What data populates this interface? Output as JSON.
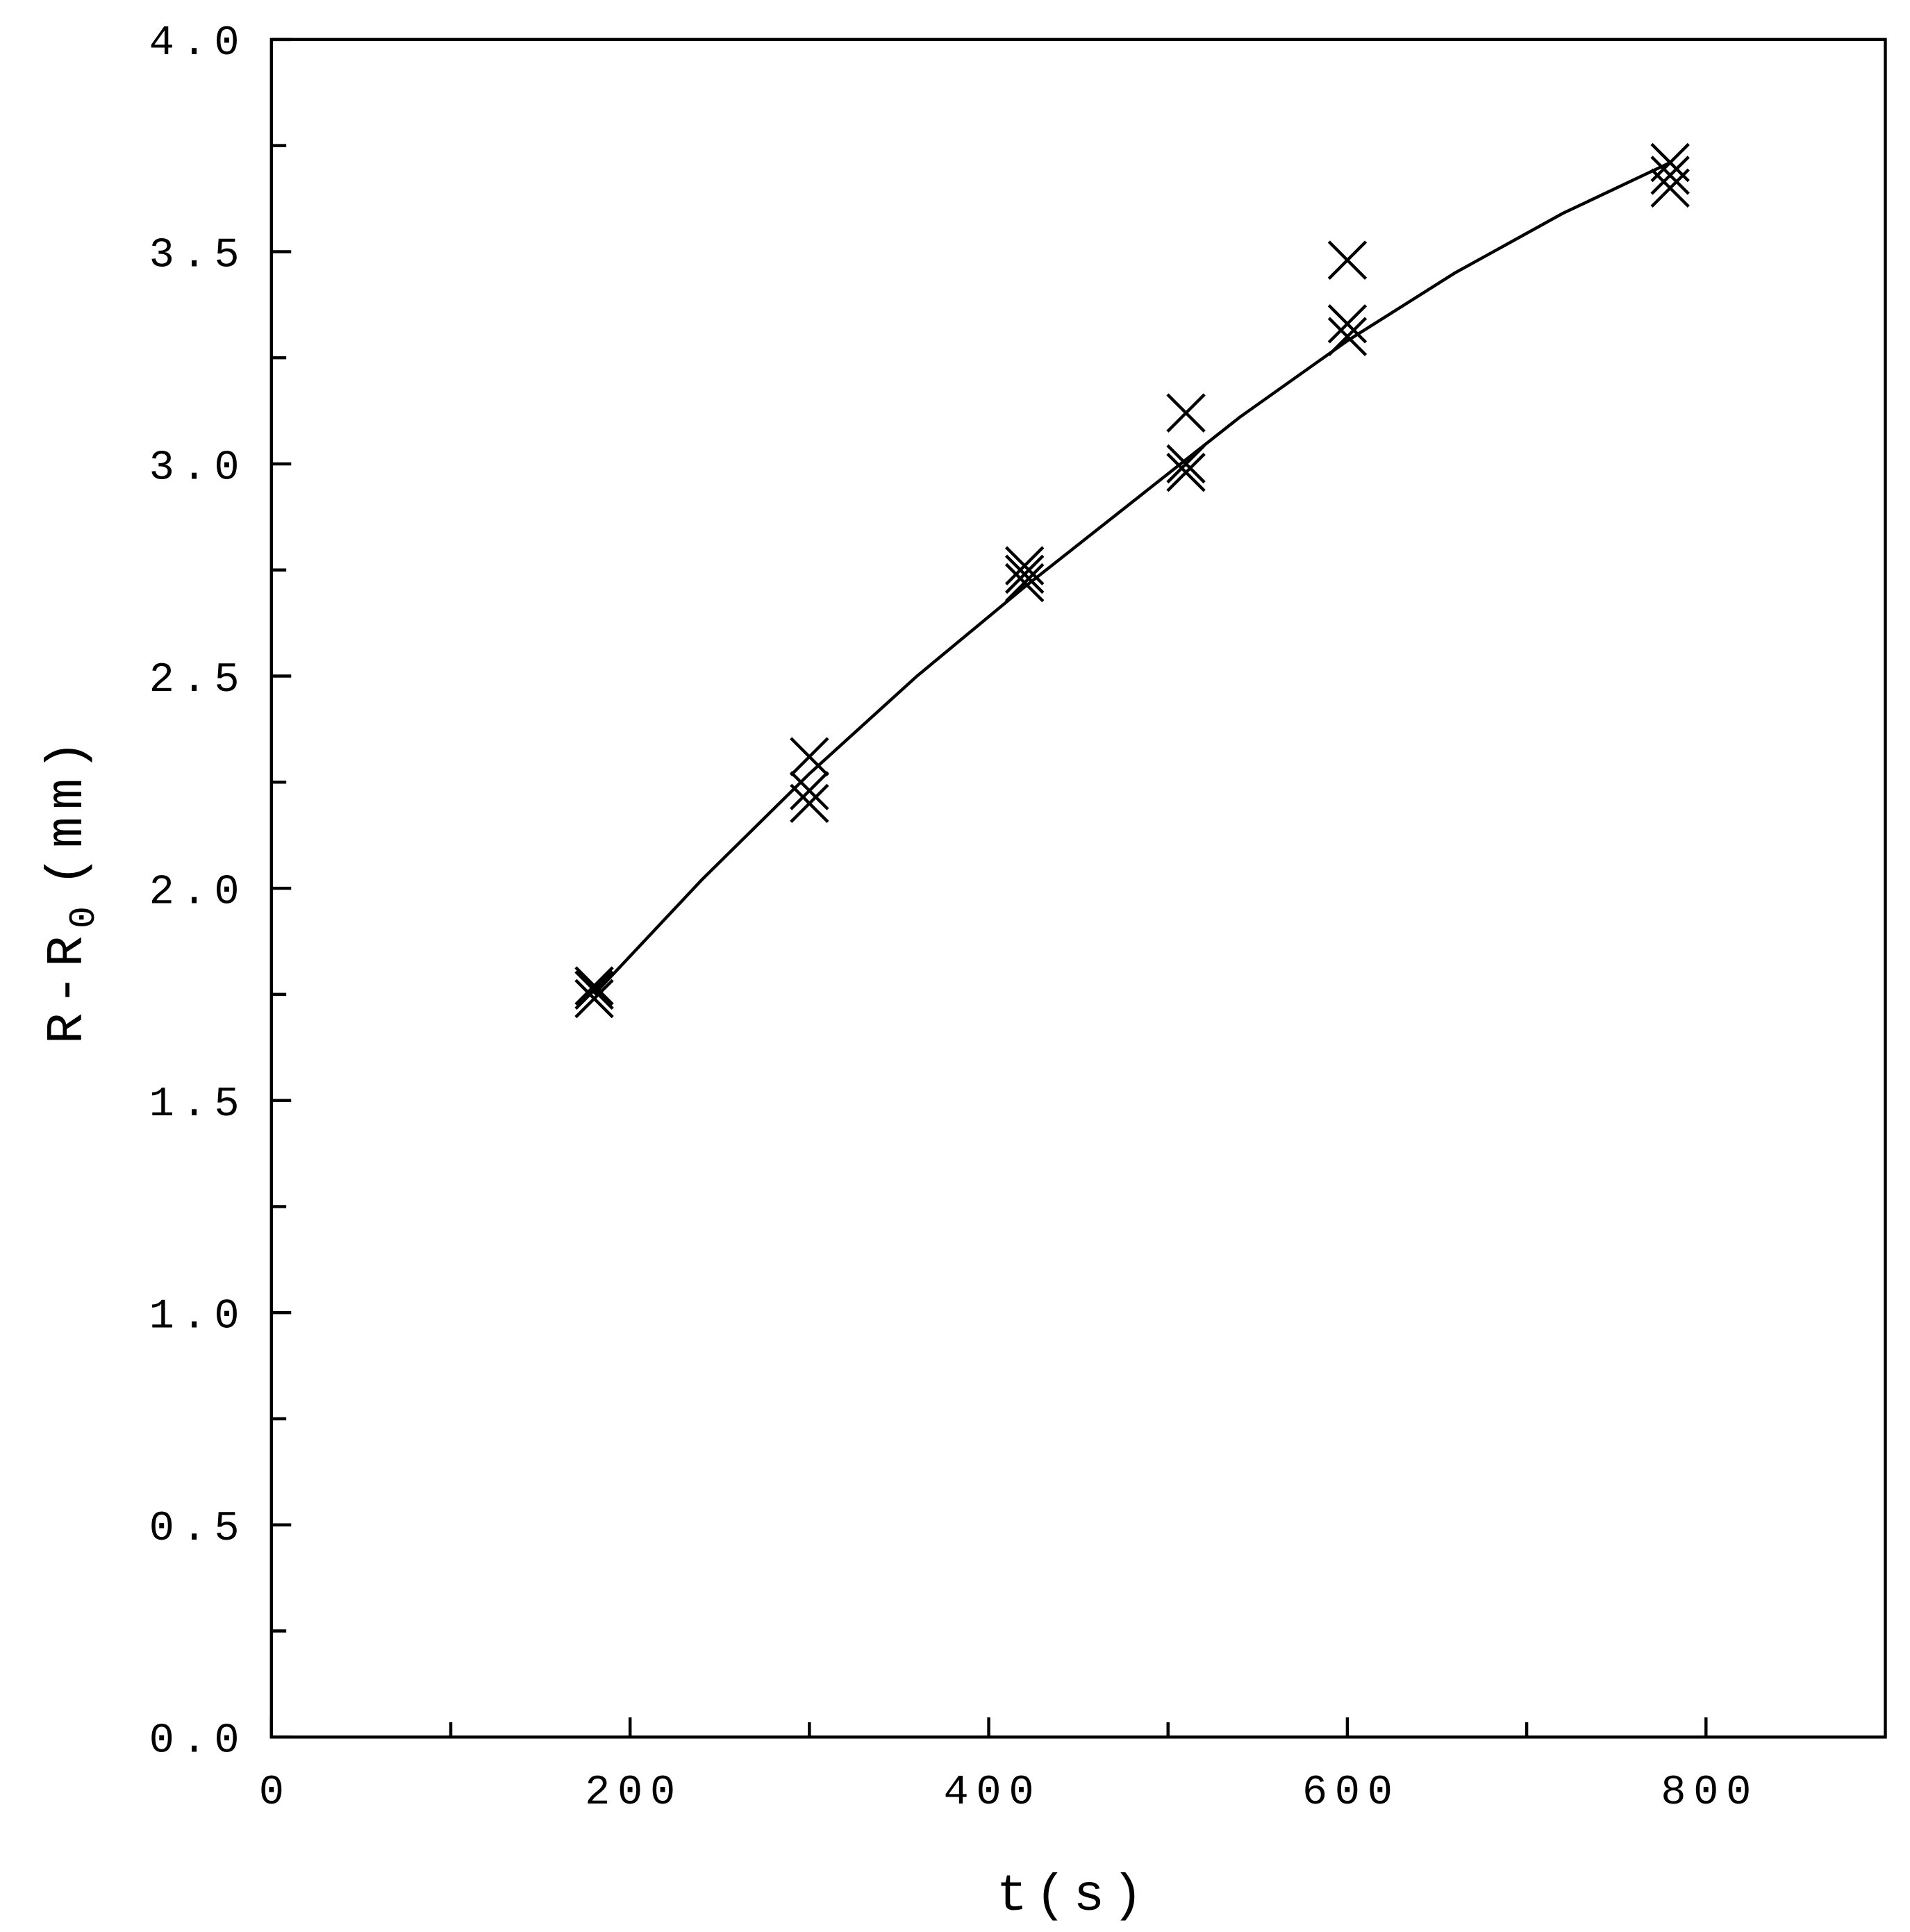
{
  "chart_data": {
    "type": "scatter",
    "xlabel": "t(s)",
    "ylabel_main": "R-R",
    "ylabel_sub": "0",
    "ylabel_unit": "(mm)",
    "xlim": [
      0,
      900
    ],
    "ylim": [
      0,
      4.0
    ],
    "xticks": [
      0,
      200,
      400,
      600,
      800
    ],
    "minor_xticks": [
      100,
      300,
      500,
      700
    ],
    "yticks": [
      {
        "value": 0,
        "label": "0.0"
      },
      0.5,
      {
        "value": 1,
        "label": "1.0"
      },
      1.5,
      {
        "value": 2,
        "label": "2.0"
      },
      2.5,
      {
        "value": 3,
        "label": "3.0"
      },
      3.5,
      {
        "value": 4,
        "label": "4.0"
      }
    ],
    "minor_yticks": [
      0.25,
      0.75,
      1.25,
      1.75,
      2.25,
      2.75,
      3.25,
      3.75
    ],
    "color": "#000000",
    "series": [
      {
        "x": [
          180,
          300,
          420,
          510,
          600,
          780
        ],
        "values": [
          1.77,
          2.31,
          2.76,
          3.12,
          3.48,
          3.71
        ]
      },
      {
        "x": [
          180,
          300,
          420,
          510,
          600,
          780
        ],
        "values": [
          1.76,
          2.23,
          2.74,
          3.0,
          3.33,
          3.68
        ]
      },
      {
        "x": [
          180,
          300,
          420,
          510,
          600,
          780
        ],
        "values": [
          1.74,
          2.2,
          2.72,
          2.98,
          3.3,
          3.65
        ]
      }
    ],
    "fit": {
      "x": [
        180,
        240,
        300,
        360,
        420,
        480,
        540,
        600,
        660,
        720,
        780
      ],
      "values": [
        1.75,
        2.02,
        2.27,
        2.5,
        2.71,
        2.91,
        3.11,
        3.29,
        3.45,
        3.59,
        3.71
      ]
    }
  }
}
